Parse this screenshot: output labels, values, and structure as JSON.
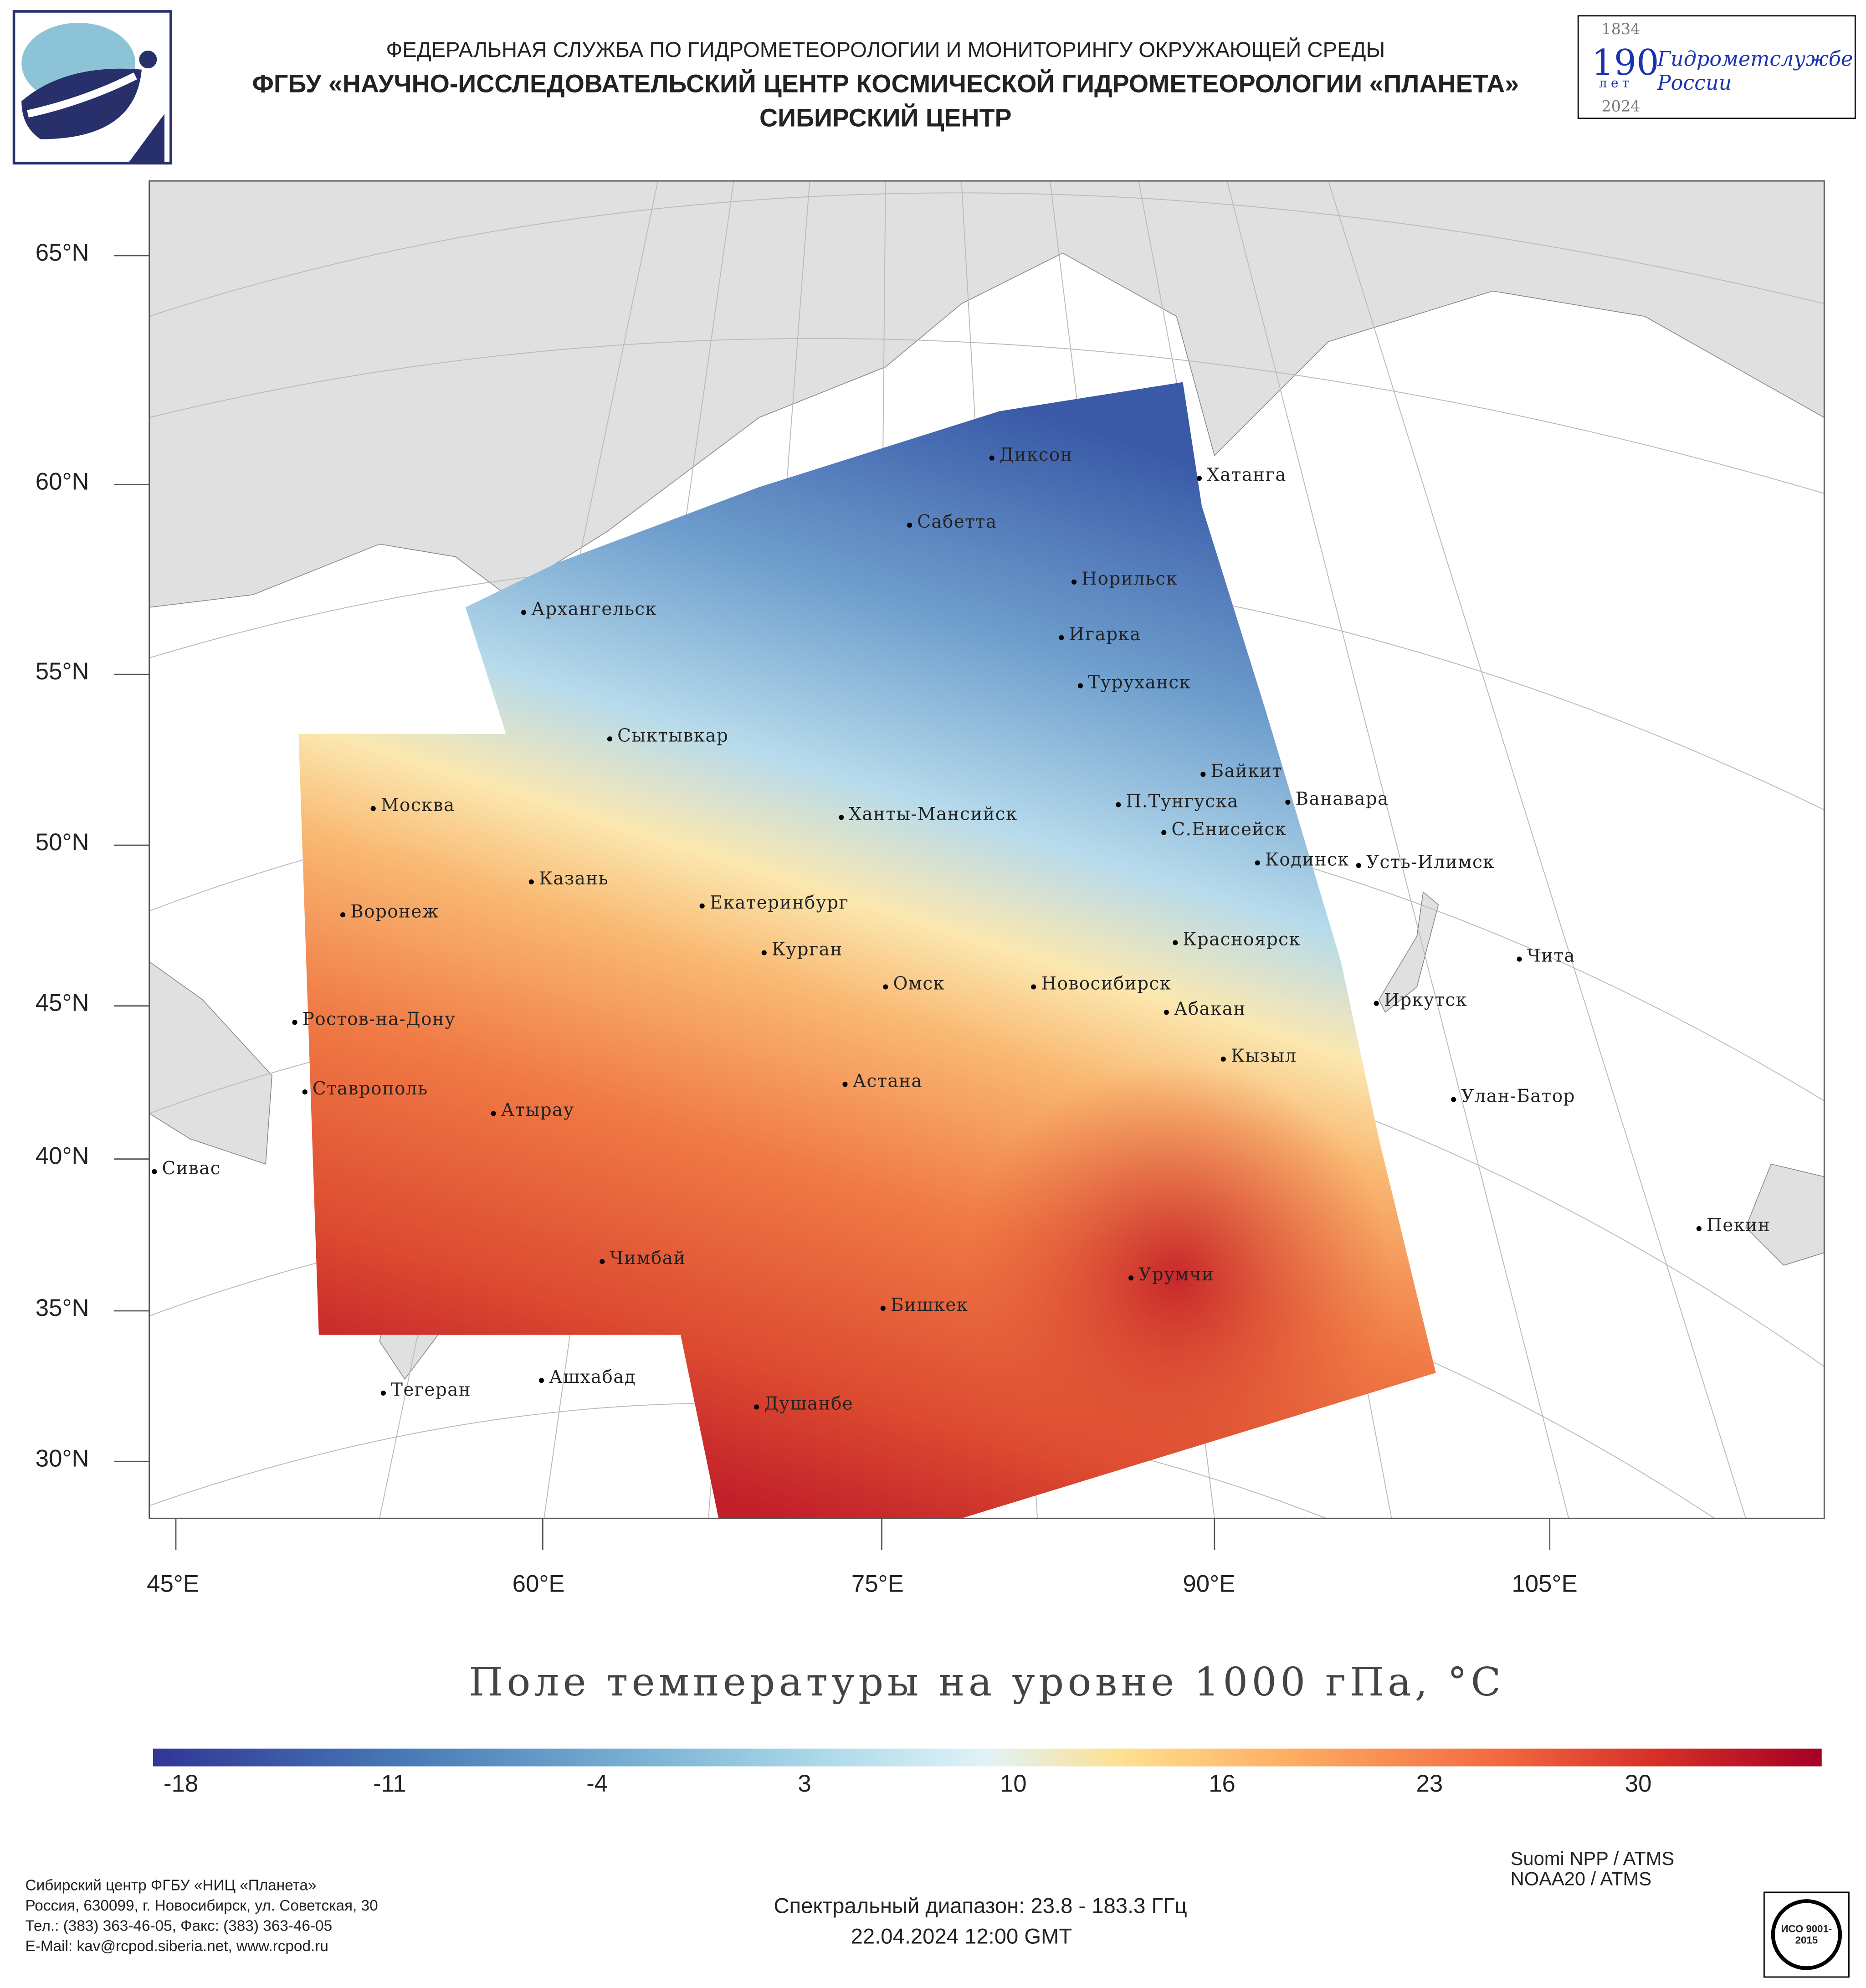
{
  "header": {
    "line1": "ФЕДЕРАЛЬНАЯ СЛУЖБА ПО ГИДРОМЕТЕОРОЛОГИИ И МОНИТОРИНГУ ОКРУЖАЮЩЕЙ СРЕДЫ",
    "line2": "ФГБУ «НАУЧНО-ИССЛЕДОВАТЕЛЬСКИЙ ЦЕНТР КОСМИЧЕСКОЙ ГИДРОМЕТЕОРОЛОГИИ «ПЛАНЕТА»",
    "line3": "СИБИРСКИЙ ЦЕНТР",
    "anniversary": {
      "year_start": "1834",
      "number": "190",
      "unit": "лет",
      "text1": "Гидрометслужбе",
      "text2": "России",
      "year_end": "2024"
    }
  },
  "map": {
    "lat_labels": [
      "65°N",
      "60°N",
      "55°N",
      "50°N",
      "45°N",
      "40°N",
      "35°N",
      "30°N"
    ],
    "lon_labels": [
      "45°E",
      "60°E",
      "75°E",
      "90°E",
      "105°E"
    ],
    "cities": [
      "Диксон",
      "Хатанга",
      "Сабетта",
      "Норильск",
      "Архангельск",
      "Игарка",
      "Туруханск",
      "Сыктывкар",
      "Байкит",
      "П.Тунгуска",
      "Ванавара",
      "Москва",
      "Ханты-Мансийск",
      "С.Енисейск",
      "Кодинск",
      "Усть-Илимск",
      "Казань",
      "Екатеринбург",
      "Воронеж",
      "Красноярск",
      "Курган",
      "Чита",
      "Омск",
      "Новосибирск",
      "Иркутск",
      "Абакан",
      "Ростов-на-Дону",
      "Кызыл",
      "Астана",
      "Ставрополь",
      "Улан-Батор",
      "Атырау",
      "Сивас",
      "Пекин",
      "Чимбай",
      "Урумчи",
      "Бишкек",
      "Ашхабад",
      "Тегеран",
      "Душанбе"
    ]
  },
  "title": "Поле температуры на уровне 1000 гПа, °C",
  "colorbar": {
    "ticks": [
      "-18",
      "-11",
      "-4",
      "3",
      "10",
      "16",
      "23",
      "30"
    ],
    "range": [
      -21,
      35
    ],
    "colors": [
      "#313695",
      "#4575b4",
      "#74add1",
      "#abd9e9",
      "#e0f3f8",
      "#fee090",
      "#fdae61",
      "#f46d43",
      "#d73027",
      "#a50026"
    ]
  },
  "footer": {
    "org": "Сибирский центр ФГБУ «НИЦ «Планета»",
    "address": "Россия, 630099, г. Новосибирск, ул. Советская, 30",
    "phone": "Тел.: (383) 363-46-05, Факс: (383) 363-46-05",
    "email": "E-Mail: kav@rcpod.siberia.net, www.rcpod.ru",
    "spectral": "Спектральный диапазон: 23.8 - 183.3 ГГц",
    "datetime": "22.04.2024 12:00 GMT",
    "sat1": "Suomi NPP / ATMS",
    "sat2": "NOAA20 / ATMS",
    "iso": "ИСО 9001-2015"
  }
}
